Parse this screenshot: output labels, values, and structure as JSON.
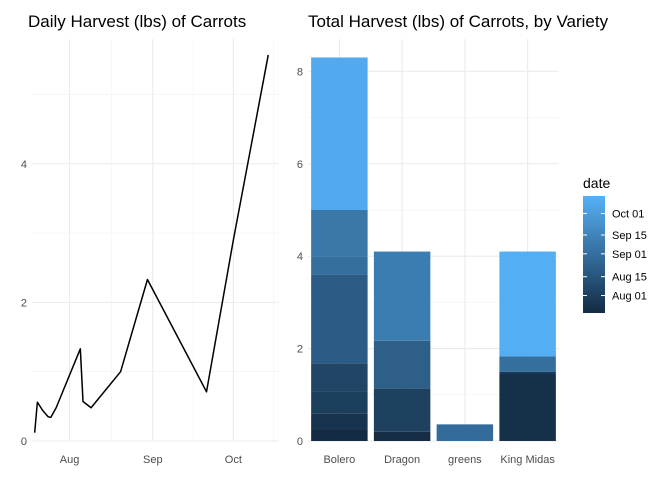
{
  "chart_data": [
    {
      "type": "line",
      "title": "Daily Harvest (lbs) of Carrots",
      "xlabel": "",
      "ylabel": "",
      "x_ticks": [
        "Aug",
        "Sep",
        "Oct"
      ],
      "x_tick_dates": [
        "2020-08-01",
        "2020-09-01",
        "2020-10-01"
      ],
      "x_range": [
        "2020-07-18",
        "2020-10-18"
      ],
      "y_ticks": [
        "0",
        "2",
        "4"
      ],
      "y_tick_values": [
        0,
        2,
        4
      ],
      "ylim": [
        0,
        5.8
      ],
      "grid": true,
      "series": [
        {
          "color": "#000000",
          "points": [
            {
              "x": "2020-07-19",
              "y": 0.12
            },
            {
              "x": "2020-07-20",
              "y": 0.56
            },
            {
              "x": "2020-07-22",
              "y": 0.44
            },
            {
              "x": "2020-07-24",
              "y": 0.35
            },
            {
              "x": "2020-07-25",
              "y": 0.34
            },
            {
              "x": "2020-07-27",
              "y": 0.48
            },
            {
              "x": "2020-08-05",
              "y": 1.33
            },
            {
              "x": "2020-08-06",
              "y": 0.57
            },
            {
              "x": "2020-08-09",
              "y": 0.48
            },
            {
              "x": "2020-08-20",
              "y": 1.0
            },
            {
              "x": "2020-08-30",
              "y": 2.33
            },
            {
              "x": "2020-09-21",
              "y": 0.71
            },
            {
              "x": "2020-09-31",
              "y": 2.9
            },
            {
              "x": "2020-10-14",
              "y": 5.57
            }
          ]
        }
      ]
    },
    {
      "type": "bar",
      "stacked": true,
      "title": "Total Harvest (lbs) of Carrots, by Variety",
      "xlabel": "",
      "ylabel": "",
      "categories": [
        "Bolero",
        "Dragon",
        "greens",
        "King Midas"
      ],
      "y_ticks": [
        "0",
        "2",
        "4",
        "6",
        "8"
      ],
      "y_tick_values": [
        0,
        2,
        4,
        6,
        8
      ],
      "ylim": [
        0,
        8.7
      ],
      "grid": true,
      "bars": [
        {
          "category": "Bolero",
          "segments": [
            {
              "date": "2020-07-19",
              "value": 0.25
            },
            {
              "date": "2020-07-24",
              "value": 0.35
            },
            {
              "date": "2020-08-01",
              "value": 0.48
            },
            {
              "date": "2020-08-05",
              "value": 0.6
            },
            {
              "date": "2020-08-20",
              "value": 1.93
            },
            {
              "date": "2020-09-01",
              "value": 0.39
            },
            {
              "date": "2020-09-07",
              "value": 1.0
            },
            {
              "date": "2020-10-09",
              "value": 3.3
            }
          ]
        },
        {
          "category": "Dragon",
          "segments": [
            {
              "date": "2020-07-20",
              "value": 0.2
            },
            {
              "date": "2020-08-02",
              "value": 0.94
            },
            {
              "date": "2020-08-22",
              "value": 1.03
            },
            {
              "date": "2020-09-10",
              "value": 1.93
            }
          ]
        },
        {
          "category": "greens",
          "segments": [
            {
              "date": "2020-08-30",
              "value": 0.36
            }
          ]
        },
        {
          "category": "King Midas",
          "segments": [
            {
              "date": "2020-07-22",
              "value": 1.45
            },
            {
              "date": "2020-07-28",
              "value": 0.05
            },
            {
              "date": "2020-09-01",
              "value": 0.33
            },
            {
              "date": "2020-10-12",
              "value": 2.27
            }
          ]
        }
      ],
      "legend": {
        "title": "date",
        "position": "right",
        "type": "colorbar",
        "labels": [
          "Oct 01",
          "Sep 15",
          "Sep 01",
          "Aug 15",
          "Aug 01"
        ],
        "label_dates": [
          "2020-10-01",
          "2020-09-15",
          "2020-09-01",
          "2020-08-15",
          "2020-08-01"
        ],
        "range": [
          "2020-07-19",
          "2020-10-14"
        ],
        "color_low": "#132B43",
        "color_high": "#56B1F7"
      }
    }
  ]
}
